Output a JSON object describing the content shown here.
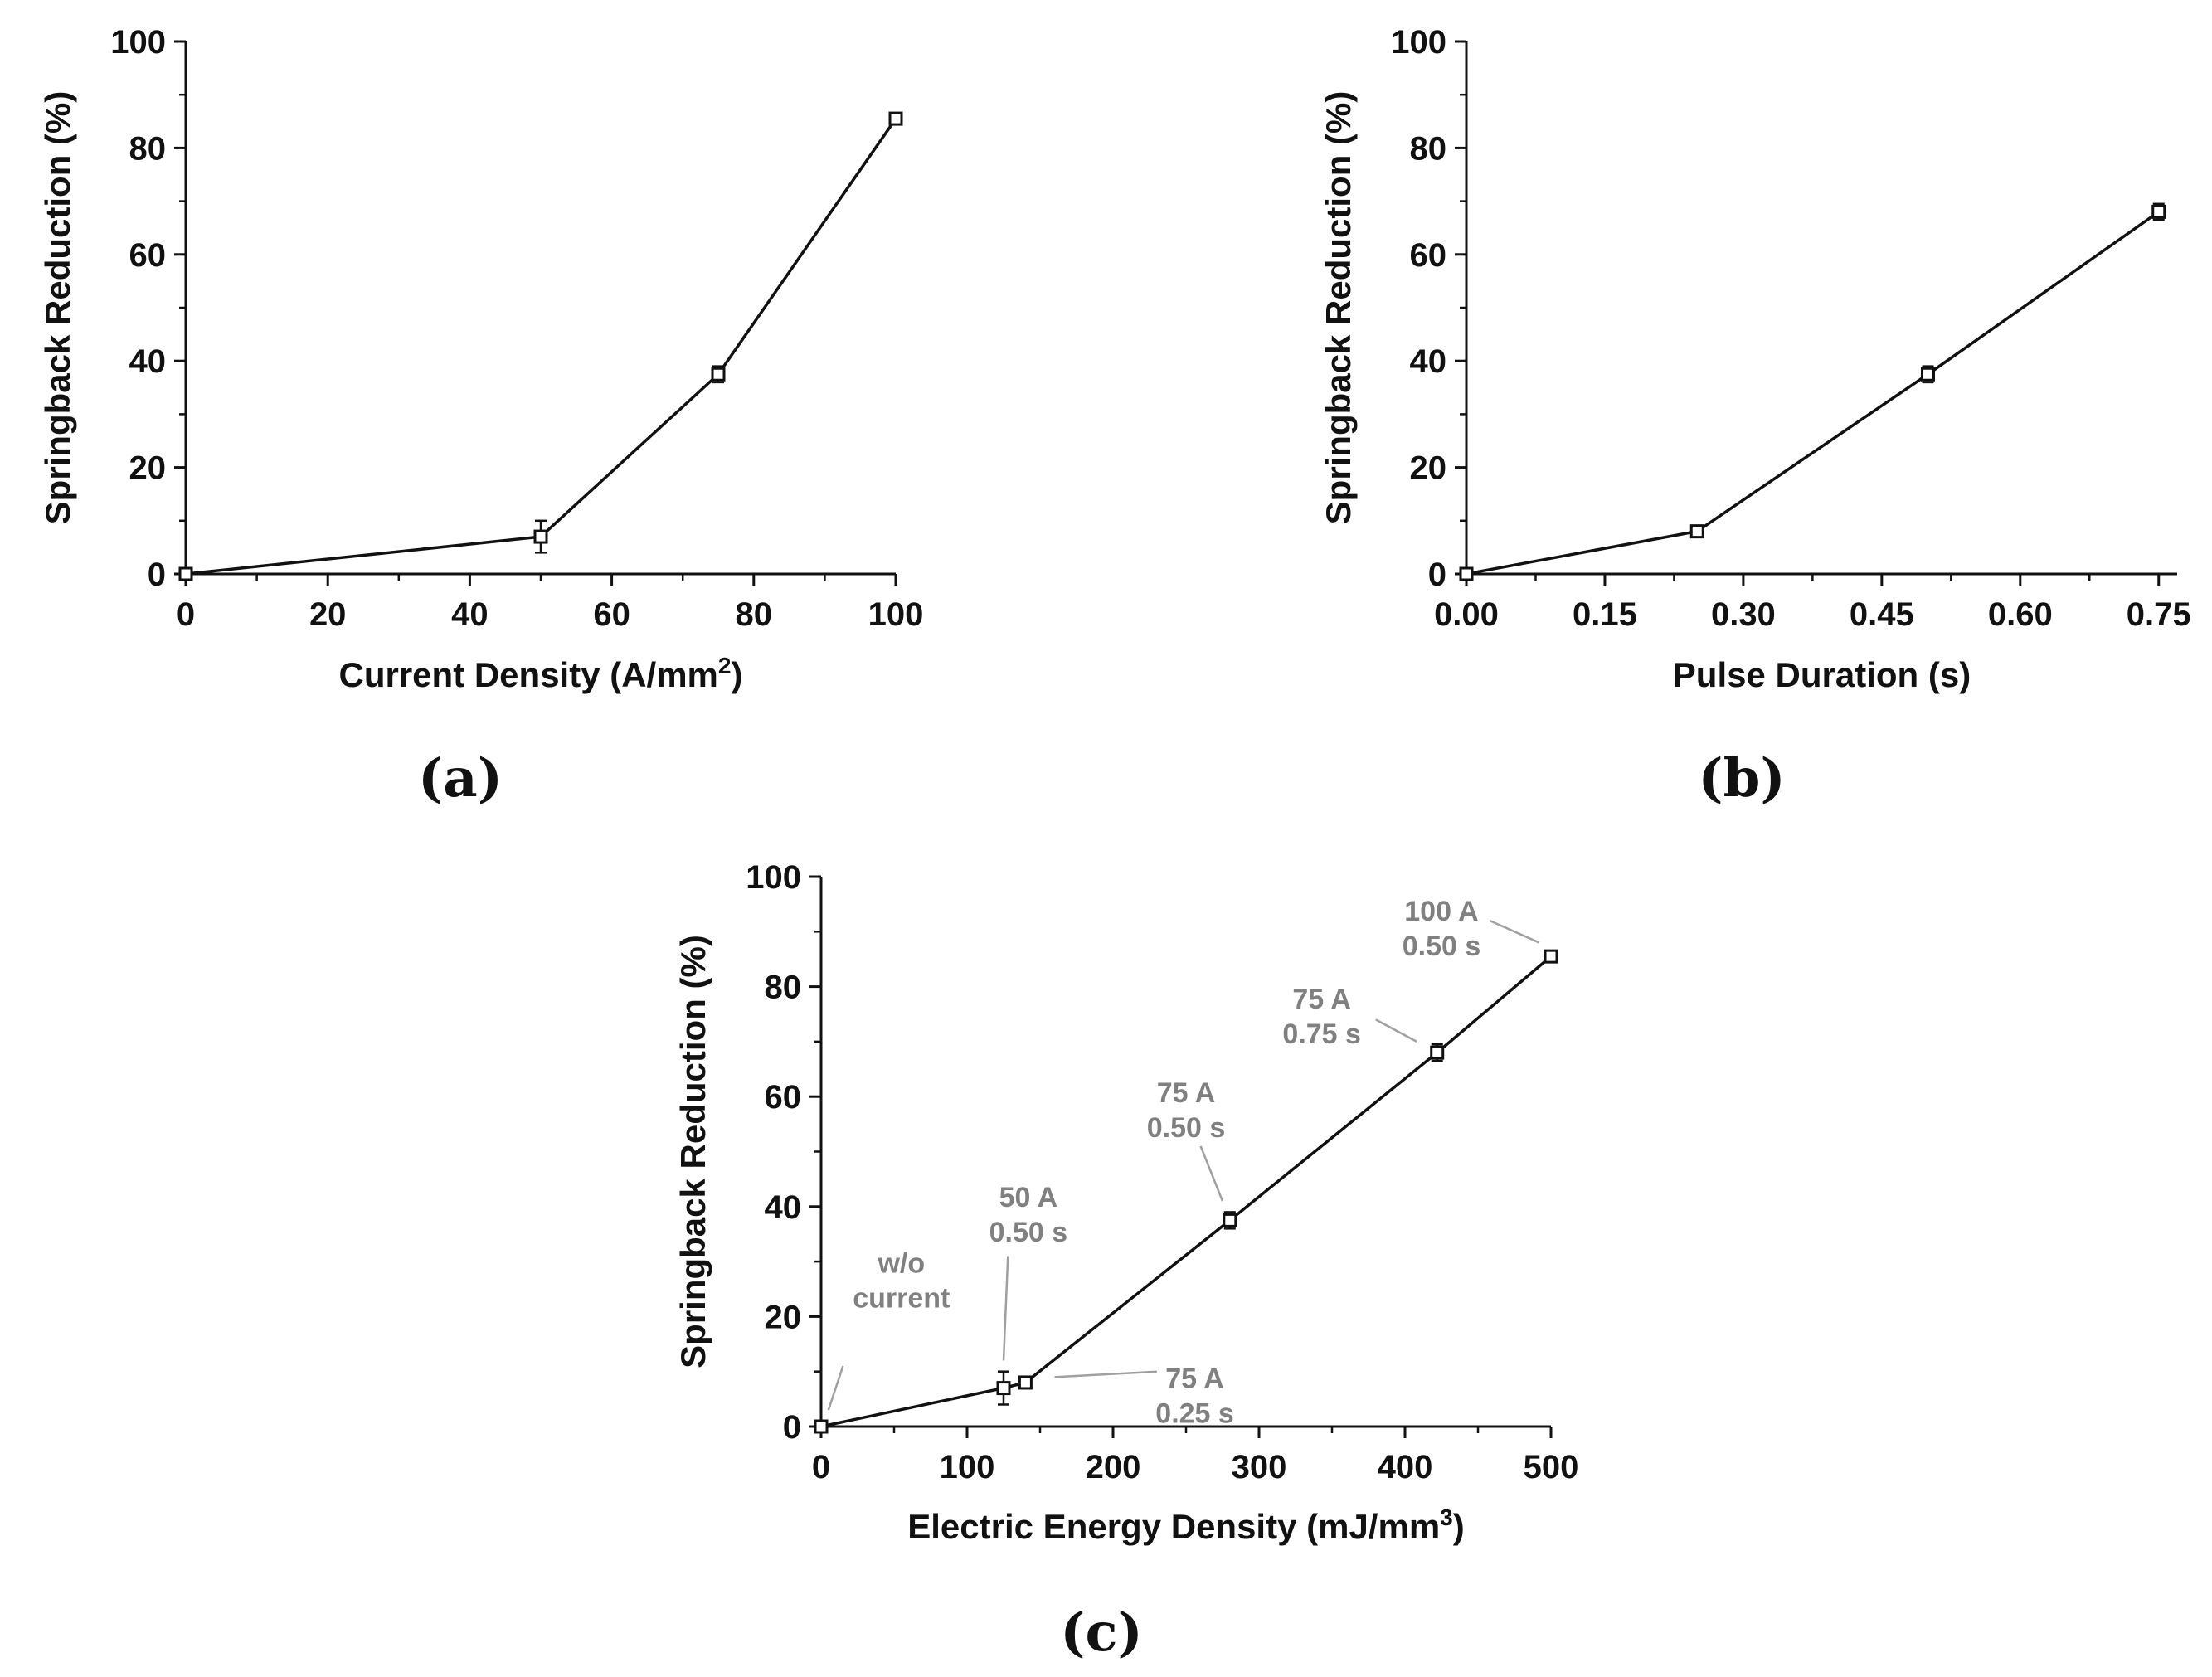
{
  "chart_data": [
    {
      "id": "a",
      "type": "line",
      "panel_label": "(a)",
      "xlabel": "Current Density (A/mm",
      "xlabel_sup": "2",
      "xlabel_end": ")",
      "ylabel": "Springback Reduction (%)",
      "xlim": [
        0,
        100
      ],
      "ylim": [
        0,
        100
      ],
      "xticks": [
        0,
        20,
        40,
        60,
        80,
        100
      ],
      "xtick_labels": [
        "0",
        "20",
        "40",
        "60",
        "80",
        "100"
      ],
      "yticks": [
        0,
        20,
        40,
        60,
        80,
        100
      ],
      "ytick_labels": [
        "0",
        "20",
        "40",
        "60",
        "80",
        "100"
      ],
      "points": [
        {
          "x": 0,
          "y": 0,
          "err": 0
        },
        {
          "x": 50,
          "y": 7,
          "err": 3
        },
        {
          "x": 75,
          "y": 37.5,
          "err": 1.5
        },
        {
          "x": 100,
          "y": 85.5,
          "err": 1
        }
      ],
      "annotations": []
    },
    {
      "id": "b",
      "type": "line",
      "panel_label": "(b)",
      "xlabel": "Pulse Duration (s)",
      "xlabel_sup": "",
      "xlabel_end": "",
      "ylabel": "Springback Reduction (%)",
      "xlim": [
        0,
        0.77
      ],
      "ylim": [
        0,
        100
      ],
      "xticks": [
        0,
        0.15,
        0.3,
        0.45,
        0.6,
        0.75
      ],
      "xtick_labels": [
        "0.00",
        "0.15",
        "0.30",
        "0.45",
        "0.60",
        "0.75"
      ],
      "yticks": [
        0,
        20,
        40,
        60,
        80,
        100
      ],
      "ytick_labels": [
        "0",
        "20",
        "40",
        "60",
        "80",
        "100"
      ],
      "points": [
        {
          "x": 0,
          "y": 0,
          "err": 0
        },
        {
          "x": 0.25,
          "y": 8,
          "err": 1
        },
        {
          "x": 0.5,
          "y": 37.5,
          "err": 1.5
        },
        {
          "x": 0.75,
          "y": 68,
          "err": 1.5
        }
      ],
      "annotations": []
    },
    {
      "id": "c",
      "type": "line",
      "panel_label": "(c)",
      "xlabel": "Electric Energy Density (mJ/mm",
      "xlabel_sup": "3",
      "xlabel_end": ")",
      "ylabel": "Springback Reduction (%)",
      "xlim": [
        0,
        500
      ],
      "ylim": [
        0,
        100
      ],
      "xticks": [
        0,
        100,
        200,
        300,
        400,
        500
      ],
      "xtick_labels": [
        "0",
        "100",
        "200",
        "300",
        "400",
        "500"
      ],
      "yticks": [
        0,
        20,
        40,
        60,
        80,
        100
      ],
      "ytick_labels": [
        "0",
        "20",
        "40",
        "60",
        "80",
        "100"
      ],
      "points": [
        {
          "x": 0,
          "y": 0,
          "err": 0
        },
        {
          "x": 125,
          "y": 7,
          "err": 3
        },
        {
          "x": 140,
          "y": 8,
          "err": 1
        },
        {
          "x": 280,
          "y": 37.5,
          "err": 1.5
        },
        {
          "x": 422,
          "y": 68,
          "err": 1.5
        },
        {
          "x": 500,
          "y": 85.5,
          "err": 1
        }
      ],
      "annotations": [
        {
          "lines": [
            "w/o",
            "current"
          ],
          "target": [
            5,
            3
          ],
          "text_at": [
            55,
            28
          ],
          "leader_from": [
            15,
            11
          ]
        },
        {
          "lines": [
            "50 A",
            "0.50 s"
          ],
          "target": [
            125,
            12
          ],
          "text_at": [
            142,
            40
          ],
          "leader_from": [
            128,
            31
          ]
        },
        {
          "lines": [
            "75 A",
            "0.25 s"
          ],
          "target": [
            160,
            9
          ],
          "text_at": [
            256,
            7
          ],
          "leader_from": [
            230,
            10
          ]
        },
        {
          "lines": [
            "75 A",
            "0.50 s"
          ],
          "target": [
            275,
            41
          ],
          "text_at": [
            250,
            59
          ],
          "leader_from": [
            260,
            51
          ]
        },
        {
          "lines": [
            "75 A",
            "0.75 s"
          ],
          "target": [
            408,
            70
          ],
          "text_at": [
            343,
            76
          ],
          "leader_from": [
            380,
            74
          ]
        },
        {
          "lines": [
            "100 A",
            "0.50 s"
          ],
          "target": [
            492,
            88
          ],
          "text_at": [
            425,
            92
          ],
          "leader_from": [
            458,
            92
          ]
        }
      ]
    }
  ]
}
